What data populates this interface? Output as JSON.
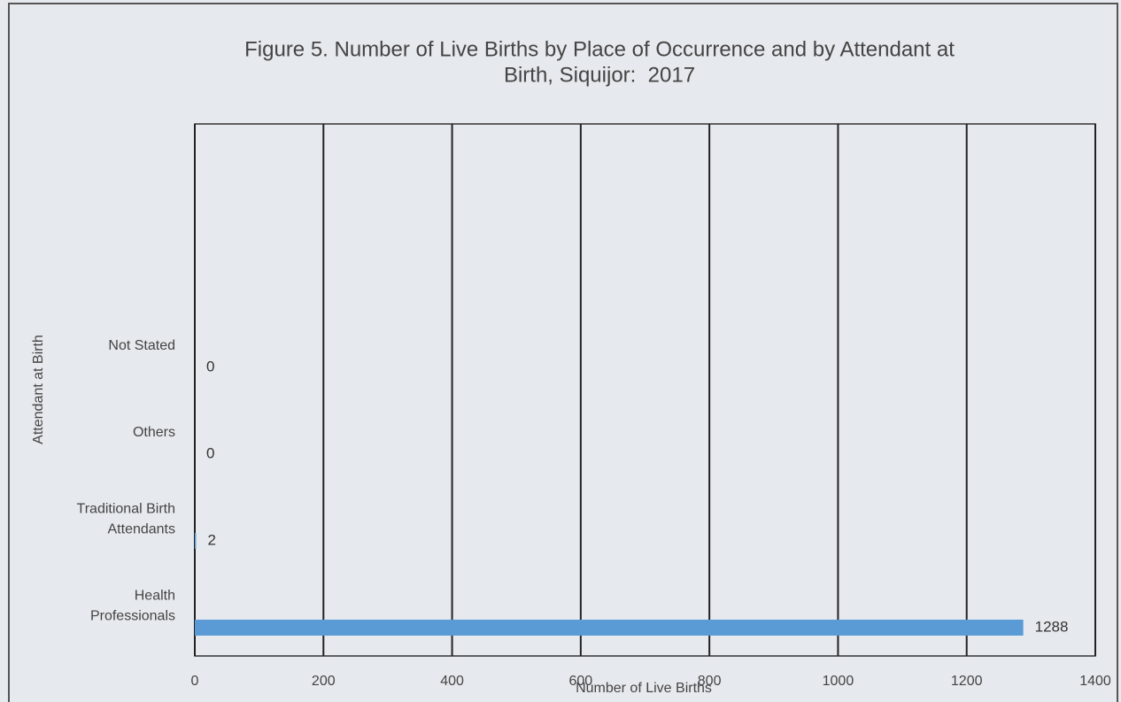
{
  "chart_data": {
    "type": "barh",
    "title": "Figure 5. Number of Live Births by Place of Occurrence and by Attendant at Birth, Siquijor:  2017",
    "xlabel": "Number of Live Births",
    "ylabel": "Attendant at Birth",
    "categories": [
      "Not Stated",
      "Others",
      "Traditional Birth Attendants",
      "Health Professionals"
    ],
    "values": [
      0,
      0,
      2,
      1288
    ],
    "color": "#5b9bd5",
    "xlim": [
      0,
      1400
    ],
    "xticks": [
      0,
      200,
      400,
      600,
      800,
      1000,
      1200,
      1400
    ],
    "grid": true
  }
}
